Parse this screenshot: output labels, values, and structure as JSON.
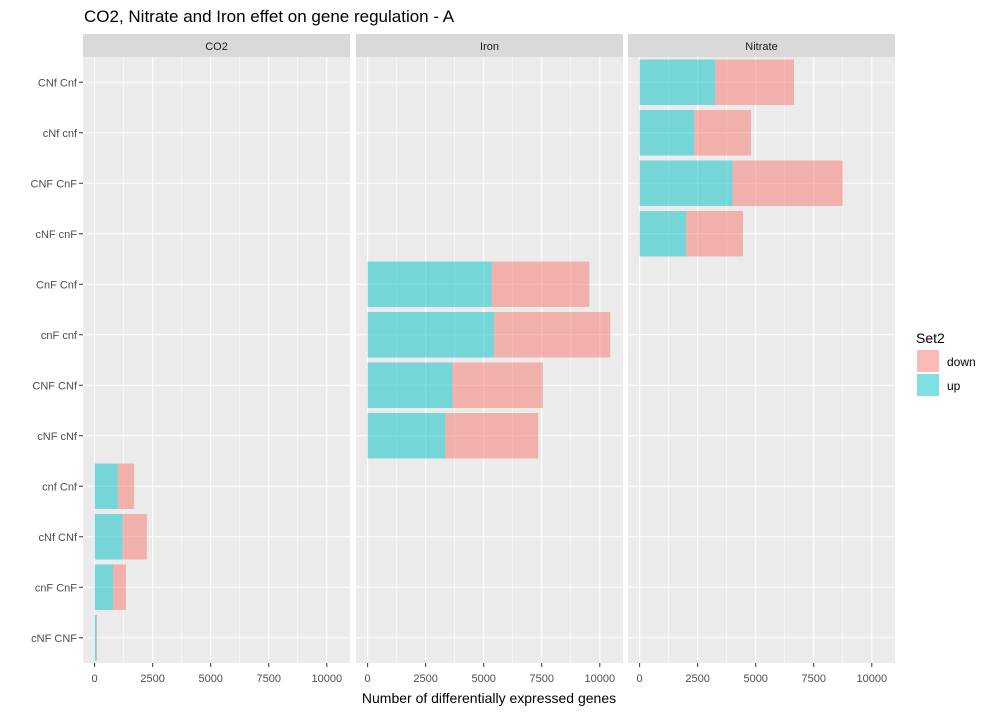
{
  "chart_data": {
    "type": "bar",
    "orientation": "horizontal",
    "stacked": true,
    "title": "CO2, Nitrate and Iron effet on gene regulation - A",
    "xlabel": "Number of differentially expressed genes",
    "ylabel": "",
    "xlim": [
      -500,
      11000
    ],
    "xticks": [
      0,
      2500,
      5000,
      7500,
      10000
    ],
    "grid": true,
    "categories": [
      "CNf Cnf",
      "cNf cnf",
      "CNF CnF",
      "cNF cnF",
      "CnF Cnf",
      "cnF cnf",
      "CNF CNf",
      "cNF cNf",
      "cnf Cnf",
      "cNf CNf",
      "cnF CnF",
      "cNF CNF"
    ],
    "facets": [
      {
        "name": "CO2",
        "series": [
          {
            "name": "up",
            "values": [
              0,
              0,
              0,
              0,
              0,
              0,
              0,
              0,
              1000,
              1200,
              800,
              80
            ]
          },
          {
            "name": "down",
            "values": [
              0,
              0,
              0,
              0,
              0,
              0,
              0,
              0,
              700,
              1050,
              550,
              20
            ]
          }
        ]
      },
      {
        "name": "Iron",
        "series": [
          {
            "name": "up",
            "values": [
              0,
              0,
              0,
              0,
              5350,
              5450,
              3650,
              3350
            ]
          },
          {
            "name": "down",
            "values": [
              0,
              0,
              0,
              0,
              4200,
              5000,
              3900,
              4000
            ]
          }
        ]
      },
      {
        "name": "Nitrate",
        "series": [
          {
            "name": "up",
            "values": [
              3250,
              2350,
              4000,
              2000
            ]
          },
          {
            "name": "down",
            "values": [
              3400,
              2450,
              4750,
              2450
            ]
          }
        ]
      }
    ],
    "legend": {
      "title": "Set2",
      "position": "right",
      "items": [
        {
          "label": "down",
          "color": "#F8766D"
        },
        {
          "label": "up",
          "color": "#00BFC4"
        }
      ]
    },
    "colors": {
      "up": "#00BFC4",
      "down": "#F8766D",
      "panel": "#EBEBEB",
      "strip": "#D9D9D9",
      "grid": "#FFFFFF"
    },
    "bar_opacity": 0.5
  }
}
